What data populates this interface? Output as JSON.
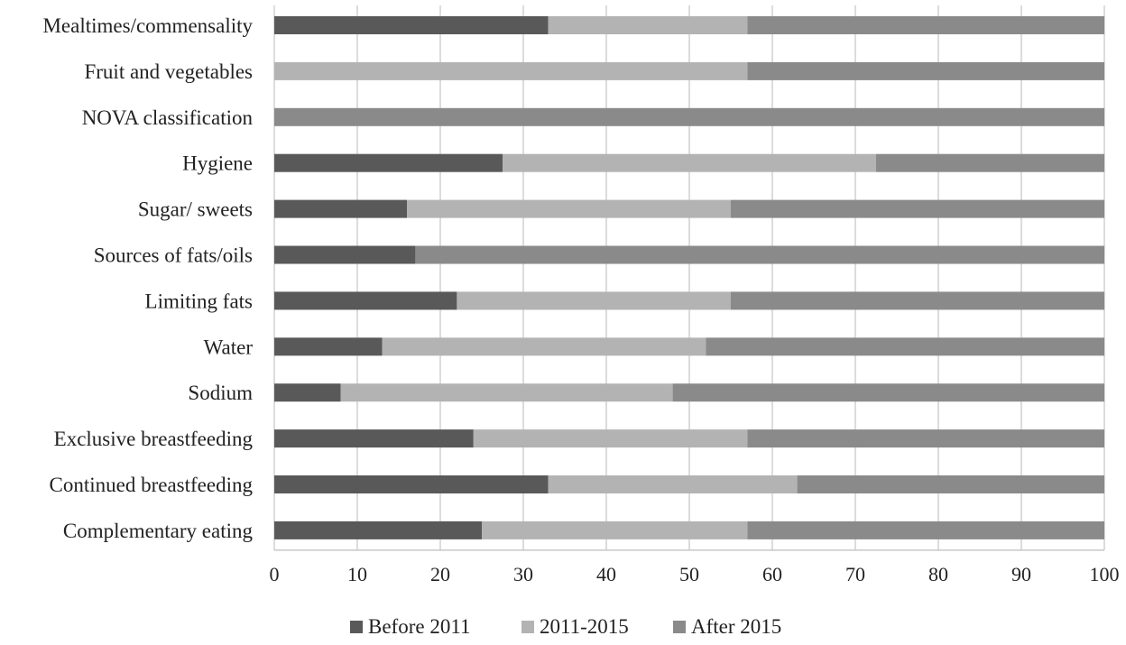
{
  "chart_data": {
    "type": "bar",
    "orientation": "horizontal",
    "stacked": true,
    "categories": [
      "Mealtimes/commensality",
      "Fruit and vegetables",
      "NOVA classification",
      "Hygiene",
      "Sugar/ sweets",
      "Sources of fats/oils",
      "Limiting fats",
      "Water ",
      "Sodium",
      "Exclusive breastfeeding",
      "Continued breastfeeding",
      "Complementary eating"
    ],
    "series": [
      {
        "name": "Before 2011",
        "color": "#595959",
        "values": [
          33,
          0,
          0,
          27.5,
          16,
          17,
          22,
          13,
          8,
          24,
          33,
          25
        ]
      },
      {
        "name": "2011-2015",
        "color": "#b3b3b3",
        "values": [
          24,
          57,
          0,
          45,
          39,
          0,
          33,
          39,
          40,
          33,
          30,
          32
        ]
      },
      {
        "name": "After 2015",
        "color": "#8a8a8a",
        "values": [
          43,
          43,
          100,
          27.5,
          45,
          83,
          45,
          48,
          52,
          43,
          37,
          43
        ]
      }
    ],
    "xlim": [
      0,
      100
    ],
    "xticks": [
      "0",
      "10",
      "20",
      "30",
      "40",
      "50",
      "60",
      "70",
      "80",
      "90",
      "100"
    ],
    "grid": true,
    "legend_position": "bottom"
  }
}
